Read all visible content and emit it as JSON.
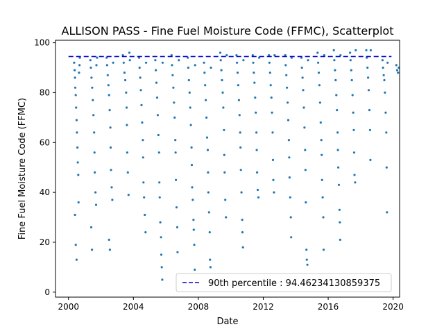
{
  "chart_data": {
    "type": "scatter",
    "title": "ALLISON PASS - Fine Fuel Moisture Code (FFMC), Scatterplot",
    "xlabel": "Date",
    "ylabel": "Fine Fuel Moisture Code (FFMC)",
    "xlim": [
      1999.2,
      2020.4
    ],
    "ylim": [
      -2,
      101
    ],
    "xticks": [
      "2000",
      "2004",
      "2008",
      "2012",
      "2016",
      "2020"
    ],
    "yticks": [
      "0",
      "20",
      "40",
      "60",
      "80",
      "100"
    ],
    "grid": false,
    "legend_position": "lower right",
    "reference_line": {
      "label": "90th percentile : 94.46234130859375",
      "value": 94.46234130859375,
      "style": "dashed",
      "color": "#0000cc"
    },
    "series": [
      {
        "marker_color": "#1f77b4",
        "note_on_points": "dense daily fire-season readings per year; representative points",
        "points": [
          [
            2000.35,
            92
          ],
          [
            2000.38,
            89
          ],
          [
            2000.4,
            86
          ],
          [
            2000.42,
            82
          ],
          [
            2000.45,
            79
          ],
          [
            2000.47,
            74
          ],
          [
            2000.5,
            69
          ],
          [
            2000.52,
            64
          ],
          [
            2000.55,
            58
          ],
          [
            2000.57,
            52
          ],
          [
            2000.6,
            47
          ],
          [
            2000.62,
            36
          ],
          [
            2000.4,
            31
          ],
          [
            2000.45,
            19
          ],
          [
            2000.5,
            13
          ],
          [
            2000.65,
            88
          ],
          [
            2000.68,
            91
          ],
          [
            2000.7,
            94
          ],
          [
            2001.35,
            93
          ],
          [
            2001.38,
            90
          ],
          [
            2001.42,
            86
          ],
          [
            2001.46,
            82
          ],
          [
            2001.5,
            77
          ],
          [
            2001.54,
            71
          ],
          [
            2001.58,
            64
          ],
          [
            2001.6,
            56
          ],
          [
            2001.62,
            48
          ],
          [
            2001.66,
            40
          ],
          [
            2001.7,
            35
          ],
          [
            2001.4,
            26
          ],
          [
            2001.45,
            17
          ],
          [
            2001.72,
            91
          ],
          [
            2001.76,
            94
          ],
          [
            2002.35,
            94
          ],
          [
            2002.38,
            91
          ],
          [
            2002.42,
            87
          ],
          [
            2002.46,
            83
          ],
          [
            2002.5,
            79
          ],
          [
            2002.54,
            73
          ],
          [
            2002.58,
            66
          ],
          [
            2002.6,
            58
          ],
          [
            2002.62,
            49
          ],
          [
            2002.66,
            42
          ],
          [
            2002.7,
            37
          ],
          [
            2002.5,
            21
          ],
          [
            2002.55,
            17
          ],
          [
            2002.75,
            92
          ],
          [
            2003.35,
            95
          ],
          [
            2003.4,
            92
          ],
          [
            2003.45,
            88
          ],
          [
            2003.5,
            85
          ],
          [
            2003.55,
            80
          ],
          [
            2003.58,
            74
          ],
          [
            2003.6,
            67
          ],
          [
            2003.62,
            56
          ],
          [
            2003.66,
            48
          ],
          [
            2003.7,
            39
          ],
          [
            2003.75,
            96
          ],
          [
            2003.78,
            93
          ],
          [
            2004.35,
            94
          ],
          [
            2004.38,
            90
          ],
          [
            2004.42,
            86
          ],
          [
            2004.46,
            81
          ],
          [
            2004.5,
            75
          ],
          [
            2004.54,
            68
          ],
          [
            2004.58,
            61
          ],
          [
            2004.6,
            54
          ],
          [
            2004.62,
            44
          ],
          [
            2004.66,
            38
          ],
          [
            2004.7,
            31
          ],
          [
            2004.75,
            24
          ],
          [
            2004.78,
            92
          ],
          [
            2005.35,
            93
          ],
          [
            2005.38,
            89
          ],
          [
            2005.42,
            84
          ],
          [
            2005.46,
            78
          ],
          [
            2005.5,
            71
          ],
          [
            2005.54,
            63
          ],
          [
            2005.58,
            56
          ],
          [
            2005.6,
            44
          ],
          [
            2005.62,
            38
          ],
          [
            2005.66,
            28
          ],
          [
            2005.7,
            22
          ],
          [
            2005.72,
            15
          ],
          [
            2005.75,
            10
          ],
          [
            2005.78,
            5
          ],
          [
            2005.8,
            92
          ],
          [
            2006.35,
            95
          ],
          [
            2006.38,
            91
          ],
          [
            2006.42,
            87
          ],
          [
            2006.46,
            82
          ],
          [
            2006.5,
            76
          ],
          [
            2006.54,
            70
          ],
          [
            2006.58,
            61
          ],
          [
            2006.6,
            56
          ],
          [
            2006.62,
            45
          ],
          [
            2006.66,
            34
          ],
          [
            2006.7,
            26
          ],
          [
            2006.72,
            16
          ],
          [
            2006.75,
            7
          ],
          [
            2006.78,
            3
          ],
          [
            2006.8,
            93
          ],
          [
            2007.35,
            94
          ],
          [
            2007.38,
            90
          ],
          [
            2007.42,
            85
          ],
          [
            2007.46,
            80
          ],
          [
            2007.5,
            74
          ],
          [
            2007.54,
            67
          ],
          [
            2007.58,
            58
          ],
          [
            2007.6,
            51
          ],
          [
            2007.62,
            42
          ],
          [
            2007.66,
            37
          ],
          [
            2007.7,
            29
          ],
          [
            2007.72,
            25
          ],
          [
            2007.75,
            19
          ],
          [
            2007.78,
            9
          ],
          [
            2007.8,
            91
          ],
          [
            2008.35,
            92
          ],
          [
            2008.38,
            88
          ],
          [
            2008.42,
            83
          ],
          [
            2008.46,
            77
          ],
          [
            2008.5,
            70
          ],
          [
            2008.54,
            62
          ],
          [
            2008.58,
            57
          ],
          [
            2008.6,
            48
          ],
          [
            2008.62,
            40
          ],
          [
            2008.66,
            32
          ],
          [
            2008.7,
            24
          ],
          [
            2008.72,
            13
          ],
          [
            2008.75,
            10
          ],
          [
            2008.78,
            90
          ],
          [
            2009.35,
            96
          ],
          [
            2009.38,
            93
          ],
          [
            2009.42,
            89
          ],
          [
            2009.46,
            85
          ],
          [
            2009.5,
            80
          ],
          [
            2009.54,
            74
          ],
          [
            2009.58,
            65
          ],
          [
            2009.6,
            55
          ],
          [
            2009.62,
            48
          ],
          [
            2009.66,
            37
          ],
          [
            2009.7,
            30
          ],
          [
            2009.75,
            95
          ],
          [
            2010.35,
            95
          ],
          [
            2010.38,
            92
          ],
          [
            2010.42,
            88
          ],
          [
            2010.46,
            83
          ],
          [
            2010.5,
            77
          ],
          [
            2010.54,
            71
          ],
          [
            2010.58,
            64
          ],
          [
            2010.6,
            58
          ],
          [
            2010.62,
            49
          ],
          [
            2010.66,
            40
          ],
          [
            2010.7,
            29
          ],
          [
            2010.72,
            24
          ],
          [
            2010.75,
            18
          ],
          [
            2010.78,
            93
          ],
          [
            2011.35,
            95
          ],
          [
            2011.38,
            92
          ],
          [
            2011.42,
            88
          ],
          [
            2011.46,
            84
          ],
          [
            2011.5,
            78
          ],
          [
            2011.54,
            72
          ],
          [
            2011.58,
            64
          ],
          [
            2011.6,
            57
          ],
          [
            2011.62,
            48
          ],
          [
            2011.66,
            41
          ],
          [
            2011.7,
            38
          ],
          [
            2011.75,
            94
          ],
          [
            2012.35,
            95
          ],
          [
            2012.38,
            92
          ],
          [
            2012.42,
            88
          ],
          [
            2012.46,
            83
          ],
          [
            2012.5,
            78
          ],
          [
            2012.54,
            72
          ],
          [
            2012.58,
            64
          ],
          [
            2012.6,
            53
          ],
          [
            2012.62,
            45
          ],
          [
            2012.66,
            40
          ],
          [
            2012.7,
            95
          ],
          [
            2013.35,
            95
          ],
          [
            2013.38,
            91
          ],
          [
            2013.42,
            87
          ],
          [
            2013.46,
            82
          ],
          [
            2013.5,
            76
          ],
          [
            2013.54,
            69
          ],
          [
            2013.58,
            61
          ],
          [
            2013.6,
            54
          ],
          [
            2013.62,
            46
          ],
          [
            2013.66,
            38
          ],
          [
            2013.7,
            30
          ],
          [
            2013.72,
            22
          ],
          [
            2013.75,
            94
          ],
          [
            2014.35,
            94
          ],
          [
            2014.38,
            90
          ],
          [
            2014.42,
            86
          ],
          [
            2014.46,
            81
          ],
          [
            2014.5,
            74
          ],
          [
            2014.54,
            66
          ],
          [
            2014.58,
            57
          ],
          [
            2014.6,
            49
          ],
          [
            2014.62,
            36
          ],
          [
            2014.66,
            17
          ],
          [
            2014.68,
            13
          ],
          [
            2014.72,
            11
          ],
          [
            2014.76,
            93
          ],
          [
            2015.35,
            96
          ],
          [
            2015.38,
            92
          ],
          [
            2015.42,
            88
          ],
          [
            2015.46,
            83
          ],
          [
            2015.5,
            76
          ],
          [
            2015.54,
            68
          ],
          [
            2015.58,
            61
          ],
          [
            2015.6,
            55
          ],
          [
            2015.62,
            45
          ],
          [
            2015.66,
            38
          ],
          [
            2015.7,
            30
          ],
          [
            2015.72,
            17
          ],
          [
            2015.76,
            95
          ],
          [
            2016.35,
            97
          ],
          [
            2016.38,
            93
          ],
          [
            2016.42,
            89
          ],
          [
            2016.46,
            85
          ],
          [
            2016.5,
            79
          ],
          [
            2016.54,
            73
          ],
          [
            2016.58,
            64
          ],
          [
            2016.6,
            57
          ],
          [
            2016.62,
            50
          ],
          [
            2016.66,
            43
          ],
          [
            2016.7,
            33
          ],
          [
            2016.72,
            28
          ],
          [
            2016.74,
            21
          ],
          [
            2016.76,
            95
          ],
          [
            2017.35,
            96
          ],
          [
            2017.38,
            93
          ],
          [
            2017.42,
            89
          ],
          [
            2017.46,
            85
          ],
          [
            2017.5,
            79
          ],
          [
            2017.54,
            72
          ],
          [
            2017.58,
            65
          ],
          [
            2017.6,
            56
          ],
          [
            2017.62,
            47
          ],
          [
            2017.66,
            44
          ],
          [
            2017.7,
            97
          ],
          [
            2018.35,
            97
          ],
          [
            2018.38,
            94
          ],
          [
            2018.42,
            90
          ],
          [
            2018.46,
            86
          ],
          [
            2018.5,
            81
          ],
          [
            2018.54,
            73
          ],
          [
            2018.58,
            65
          ],
          [
            2018.6,
            53
          ],
          [
            2018.62,
            97
          ],
          [
            2019.35,
            93
          ],
          [
            2019.38,
            90
          ],
          [
            2019.42,
            87
          ],
          [
            2019.46,
            85
          ],
          [
            2019.5,
            80
          ],
          [
            2019.54,
            72
          ],
          [
            2019.58,
            64
          ],
          [
            2019.6,
            50
          ],
          [
            2019.62,
            32
          ],
          [
            2019.66,
            92
          ],
          [
            2020.2,
            91
          ],
          [
            2020.25,
            89
          ],
          [
            2020.3,
            88
          ],
          [
            2020.35,
            90
          ]
        ]
      }
    ]
  }
}
